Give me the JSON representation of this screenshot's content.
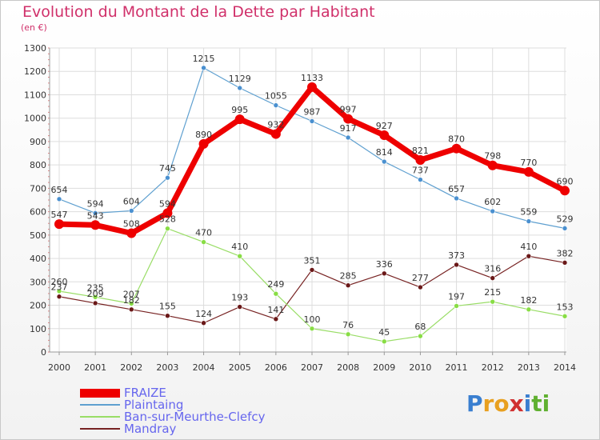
{
  "header": {
    "title": "Evolution du Montant de la Dette par Habitant",
    "subtitle": "(en €)"
  },
  "logo": {
    "letters": [
      {
        "ch": "P",
        "color": "#3a7fd0"
      },
      {
        "ch": "r",
        "color": "#e8a020"
      },
      {
        "ch": "o",
        "color": "#e8a020"
      },
      {
        "ch": "x",
        "color": "#d03030"
      },
      {
        "ch": "i",
        "color": "#3a7fd0"
      },
      {
        "ch": "t",
        "color": "#60b030"
      },
      {
        "ch": "i",
        "color": "#60b030"
      }
    ]
  },
  "chart_data": {
    "type": "line",
    "title": "Evolution du Montant de la Dette par Habitant",
    "subtitle": "(en €)",
    "xlabel": "",
    "ylabel": "",
    "x": [
      "2000",
      "2001",
      "2002",
      "2003",
      "2004",
      "2005",
      "2006",
      "2007",
      "2008",
      "2009",
      "2010",
      "2011",
      "2012",
      "2013",
      "2014"
    ],
    "ylim": [
      0,
      1300
    ],
    "yticks": [
      0,
      100,
      200,
      300,
      400,
      500,
      600,
      700,
      800,
      900,
      1000,
      1100,
      1200,
      1300
    ],
    "grid": "horizontal",
    "legend_position": "bottom-left",
    "series": [
      {
        "name": "FRAIZE",
        "color": "#ee0000",
        "values": [
          547,
          543,
          508,
          594,
          890,
          995,
          932,
          1133,
          997,
          927,
          821,
          870,
          798,
          770,
          690
        ]
      },
      {
        "name": "Plaintaing",
        "color": "#5fa0d0",
        "values": [
          654,
          594,
          604,
          745,
          1215,
          1129,
          1055,
          987,
          917,
          814,
          737,
          657,
          602,
          559,
          529
        ]
      },
      {
        "name": "Ban-sur-Meurthe-Clefcy",
        "color": "#99dd66",
        "values": [
          260,
          235,
          207,
          528,
          470,
          410,
          249,
          100,
          76,
          45,
          68,
          197,
          215,
          182,
          153
        ]
      },
      {
        "name": "Mandray",
        "color": "#772222",
        "values": [
          237,
          209,
          182,
          155,
          124,
          193,
          141,
          351,
          285,
          336,
          277,
          373,
          316,
          410,
          382
        ]
      }
    ]
  }
}
